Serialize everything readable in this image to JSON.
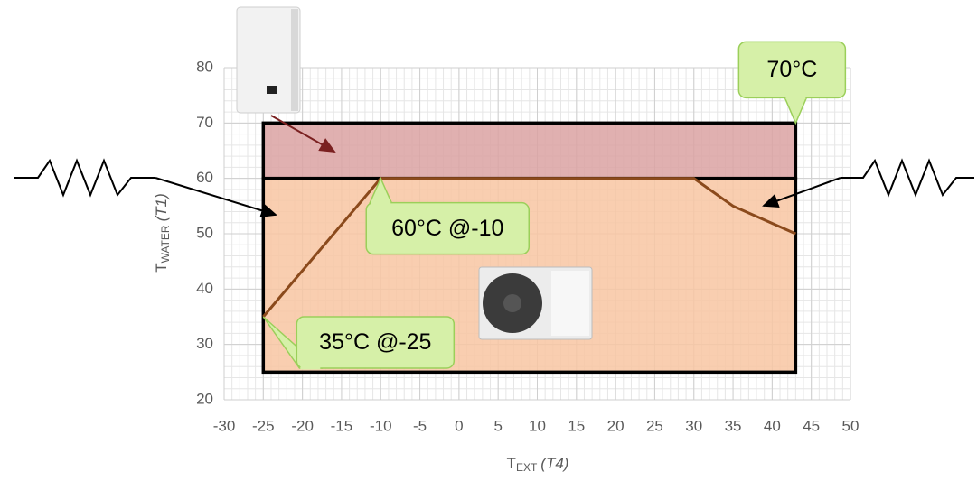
{
  "chart_data": {
    "type": "envelope",
    "xlim": [
      -30,
      50
    ],
    "xticks": [
      -30,
      -25,
      -20,
      -15,
      -10,
      -5,
      0,
      5,
      10,
      15,
      20,
      25,
      30,
      35,
      40,
      45,
      50
    ],
    "ylim": [
      20,
      80
    ],
    "yticks": [
      20,
      30,
      40,
      50,
      60,
      70,
      80
    ],
    "grid": true,
    "minor_grid": {
      "x": 1,
      "y": 2
    },
    "x_label": {
      "main": "T",
      "sub": "EXT",
      "note": "(T4)"
    },
    "y_label": {
      "main": "T",
      "sub": "WATER",
      "note": "(T1)"
    },
    "regions": [
      {
        "x": [
          -25,
          43
        ],
        "y": [
          25,
          60
        ],
        "color": "#f8c6a2"
      },
      {
        "x": [
          -25,
          43
        ],
        "y": [
          60,
          70
        ],
        "color": "#dba2a2"
      }
    ],
    "series": [
      {
        "color": "#8b4a1c",
        "x": [
          -25,
          -10,
          30,
          35,
          43
        ],
        "values": [
          35,
          60,
          60,
          55,
          50
        ]
      }
    ],
    "annotations": [
      {
        "text": "70°C",
        "x": 43,
        "y": 70
      },
      {
        "text": "60°C @-10",
        "x": -10,
        "y": 60
      },
      {
        "text": "35°C @-25",
        "x": -25,
        "y": 35
      }
    ]
  }
}
